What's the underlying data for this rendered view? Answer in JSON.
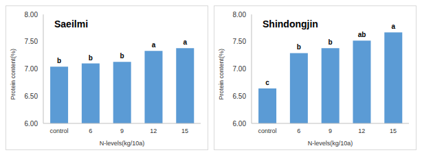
{
  "chart_data": [
    {
      "type": "bar",
      "title": "Saeilmi",
      "categories": [
        "control",
        "6",
        "9",
        "12",
        "15"
      ],
      "values": [
        7.04,
        7.1,
        7.13,
        7.33,
        7.38
      ],
      "annotations": [
        "b",
        "b",
        "b",
        "a",
        "a"
      ],
      "color": "#5b9bd5",
      "x_label": "N-levels(kg/10a)",
      "y_label": "Protein content(%)",
      "ylim": [
        6,
        8
      ],
      "yticks": [
        {
          "value": 6,
          "label": "6.00"
        },
        {
          "value": 6.5,
          "label": "6.50"
        },
        {
          "value": 7,
          "label": "7.00"
        },
        {
          "value": 7.5,
          "label": "7.50"
        },
        {
          "value": 8,
          "label": "8.00"
        }
      ],
      "grid": false
    },
    {
      "type": "bar",
      "title": "Shindongjin",
      "categories": [
        "control",
        "6",
        "9",
        "12",
        "15"
      ],
      "values": [
        6.64,
        7.29,
        7.38,
        7.52,
        7.67
      ],
      "annotations": [
        "c",
        "b",
        "b",
        "ab",
        "a"
      ],
      "color": "#5b9bd5",
      "x_label": "N-levels(kg/10a)",
      "y_label": "Protein content(%)",
      "ylim": [
        6,
        8
      ],
      "yticks": [
        {
          "value": 6,
          "label": "6.00"
        },
        {
          "value": 6.5,
          "label": "6.50"
        },
        {
          "value": 7,
          "label": "7.00"
        },
        {
          "value": 7.5,
          "label": "7.50"
        },
        {
          "value": 8,
          "label": "8.00"
        }
      ],
      "grid": false
    }
  ]
}
